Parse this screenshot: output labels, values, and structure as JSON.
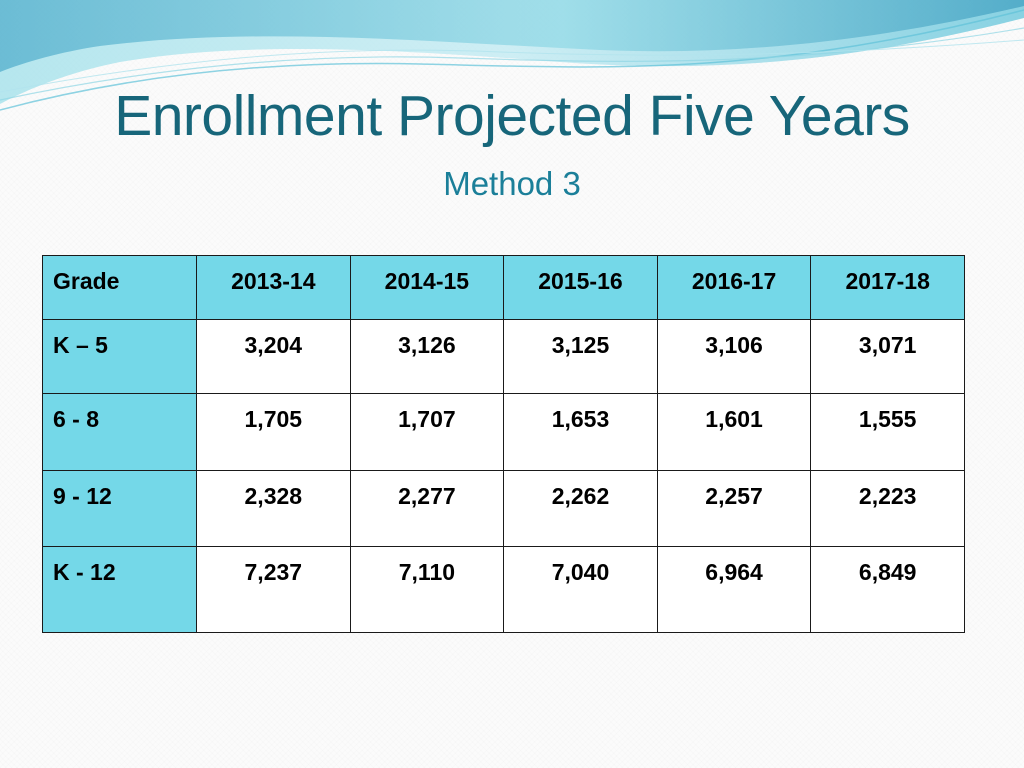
{
  "slide": {
    "title": "Enrollment Projected Five Years",
    "subtitle": "Method 3"
  },
  "table": {
    "headers": [
      "Grade",
      "2013-14",
      "2014-15",
      "2015-16",
      "2016-17",
      "2017-18"
    ],
    "rows": [
      [
        "K – 5",
        "3,204",
        "3,126",
        "3,125",
        "3,106",
        "3,071"
      ],
      [
        "6 - 8",
        "1,705",
        "1,707",
        "1,653",
        "1,601",
        "1,555"
      ],
      [
        "9 - 12",
        "2,328",
        "2,277",
        "2,262",
        "2,257",
        "2,223"
      ],
      [
        "K - 12",
        "7,237",
        "7,110",
        "7,040",
        "6,964",
        "6,849"
      ]
    ]
  },
  "colors": {
    "title": "#17667a",
    "subtitle": "#1b7f99",
    "header_fill": "#74d8e8",
    "wave_light": "#c6eef4",
    "wave_mid": "#7fd3e2",
    "wave_dark": "#3a9fc0"
  }
}
